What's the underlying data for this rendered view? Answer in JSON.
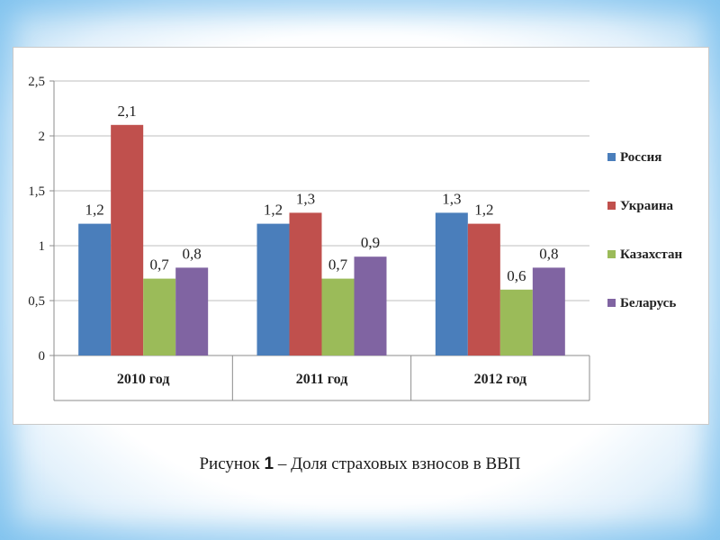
{
  "chart_data": {
    "type": "bar",
    "categories": [
      "2010 год",
      "2011 год",
      "2012 год"
    ],
    "series": [
      {
        "name": "Россия",
        "color": "#4a7ebb",
        "values": [
          1.2,
          1.2,
          1.3
        ],
        "labels": [
          "1,2",
          "1,2",
          "1,3"
        ]
      },
      {
        "name": "Украина",
        "color": "#c0504d",
        "values": [
          2.1,
          1.3,
          1.2
        ],
        "labels": [
          "2,1",
          "1,3",
          "1,2"
        ]
      },
      {
        "name": "Казахстан",
        "color": "#9bbb59",
        "values": [
          0.7,
          0.7,
          0.6
        ],
        "labels": [
          "0,7",
          "0,7",
          "0,6"
        ]
      },
      {
        "name": "Беларусь",
        "color": "#8064a2",
        "values": [
          0.8,
          0.9,
          0.8
        ],
        "labels": [
          "0,8",
          "0,9",
          "0,8"
        ]
      }
    ],
    "y_ticks": [
      0,
      0.5,
      1,
      1.5,
      2,
      2.5
    ],
    "y_tick_labels": [
      "0",
      "0,5",
      "1",
      "1,5",
      "2",
      "2,5"
    ],
    "ylim": [
      0,
      2.5
    ],
    "grid": true,
    "legend": "right"
  },
  "caption": {
    "prefix": "Рисунок",
    "number": "1",
    "text": "– Доля страховых взносов в ВВП"
  }
}
